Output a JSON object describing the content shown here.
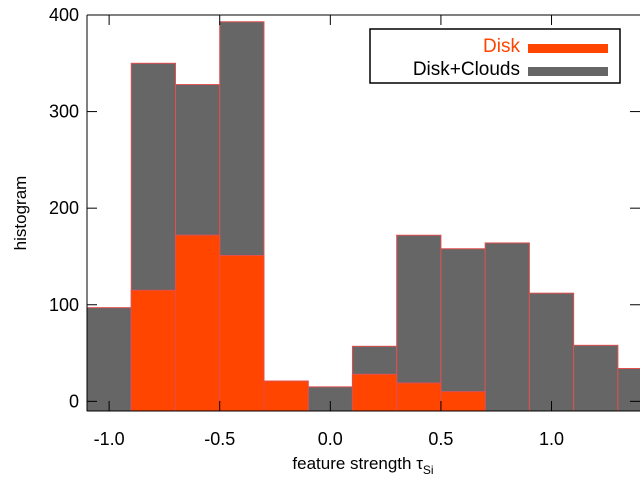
{
  "chart_data": {
    "type": "bar",
    "xlabel": "feature strength τ",
    "xlabel_subscript": "Si",
    "ylabel": "histogram",
    "xlim": [
      -1.1,
      1.4
    ],
    "ylim": [
      -10,
      400
    ],
    "x_ticks": [
      -1.0,
      -0.5,
      0.0,
      0.5,
      1.0
    ],
    "x_tick_labels": [
      "-1.0",
      "-0.5",
      "0.0",
      "0.5",
      "1.0"
    ],
    "y_ticks": [
      0,
      100,
      200,
      300,
      400
    ],
    "y_tick_labels": [
      "0",
      "100",
      "200",
      "300",
      "400"
    ],
    "bin_width": 0.2,
    "grid": false,
    "legend_position": "top-right",
    "series": [
      {
        "name": "Disk+Clouds",
        "color": "#666666",
        "edge_color": "#e05050",
        "bin_starts": [
          -1.1,
          -0.9,
          -0.7,
          -0.5,
          -0.3,
          -0.1,
          0.1,
          0.3,
          0.5,
          0.7,
          0.9,
          1.1,
          1.3
        ],
        "values": [
          97,
          350,
          328,
          393,
          21,
          15,
          57,
          172,
          158,
          164,
          112,
          58,
          34
        ]
      },
      {
        "name": "Disk",
        "color": "#ff4500",
        "edge_color": "#e05050",
        "bin_starts": [
          -0.9,
          -0.7,
          -0.5,
          -0.3,
          0.1,
          0.3,
          0.5
        ],
        "values": [
          115,
          172,
          151,
          21,
          28,
          19,
          10
        ]
      }
    ]
  }
}
